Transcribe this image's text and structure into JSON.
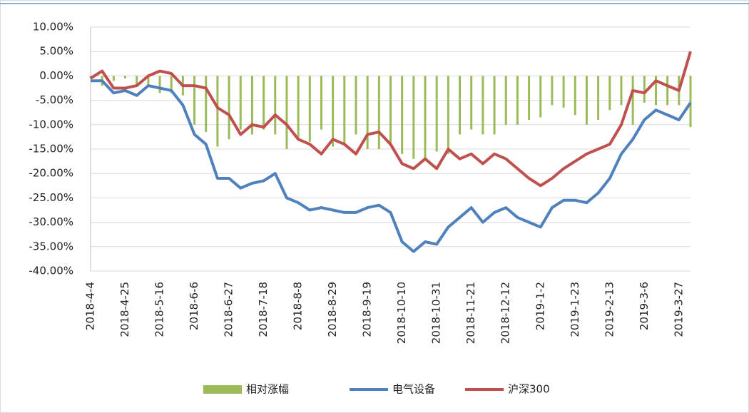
{
  "chart_data": {
    "type": "line",
    "categories": [
      "2018-4-4",
      null,
      null,
      "2018-4-25",
      null,
      null,
      "2018-5-16",
      null,
      null,
      "2018-6-6",
      null,
      null,
      "2018-6-27",
      null,
      null,
      "2018-7-18",
      null,
      null,
      "2018-8-8",
      null,
      null,
      "2018-8-29",
      null,
      null,
      "2018-9-19",
      null,
      null,
      "2018-10-10",
      null,
      null,
      "2018-10-31",
      null,
      null,
      "2018-11-21",
      null,
      null,
      "2018-12-12",
      null,
      null,
      "2019-1-2",
      null,
      null,
      "2019-1-23",
      null,
      null,
      "2019-2-13",
      null,
      null,
      "2019-3-6",
      null,
      null,
      "2019-3-27",
      null
    ],
    "series": [
      {
        "name": "相对涨幅",
        "type": "bar",
        "color": "#9bbb59",
        "values": [
          -0.5,
          -2,
          -1,
          -0.5,
          -2,
          -2,
          -3.5,
          -3.5,
          -4,
          -10,
          -11.5,
          -14.5,
          -13,
          -11,
          -12,
          -11,
          -12,
          -15,
          -13,
          -13.5,
          -11,
          -14.5,
          -14,
          -12,
          -15,
          -15,
          -14,
          -16,
          -17,
          -17,
          -15.5,
          -16,
          -12,
          -11,
          -12,
          -12,
          -10,
          -10,
          -9,
          -8.5,
          -6,
          -6.5,
          -8,
          -10,
          -9,
          -7,
          -6,
          -10,
          -5.5,
          -6,
          -6,
          -6,
          -10.5
        ]
      },
      {
        "name": "电气设备",
        "type": "line",
        "color": "#4f81bd",
        "values": [
          -1,
          -1,
          -3.5,
          -3,
          -4,
          -2,
          -2.5,
          -3,
          -6,
          -12,
          -14,
          -21,
          -21,
          -23,
          -22,
          -21.5,
          -20,
          -25,
          -26,
          -27.5,
          -27,
          -27.5,
          -28,
          -28,
          -27,
          -26.5,
          -28,
          -34,
          -36,
          -34,
          -34.5,
          -31,
          -29,
          -27,
          -30,
          -28,
          -27,
          -29,
          -30,
          -31,
          -27,
          -25.5,
          -25.5,
          -26,
          -24,
          -21,
          -16,
          -13,
          -9,
          -7,
          -8,
          -9,
          -5.5
        ]
      },
      {
        "name": "沪深300",
        "type": "line",
        "color": "#c0504d",
        "values": [
          -0.5,
          1,
          -2.5,
          -2.5,
          -2,
          0,
          1,
          0.5,
          -2,
          -2,
          -2.5,
          -6.5,
          -8,
          -12,
          -10,
          -10.5,
          -8,
          -10,
          -13,
          -14,
          -16,
          -13,
          -14,
          -16,
          -12,
          -11.5,
          -14,
          -18,
          -19,
          -17,
          -19,
          -15,
          -17,
          -16,
          -18,
          -16,
          -17,
          -19,
          -21,
          -22.5,
          -21,
          -19,
          -17.5,
          -16,
          -15,
          -14,
          -10,
          -3,
          -3.5,
          -1,
          -2,
          -3,
          5
        ]
      }
    ],
    "ylim": [
      -40,
      10
    ],
    "yticks": [
      {
        "value": -40,
        "label": "-40.00%"
      },
      {
        "value": -35,
        "label": "-35.00%"
      },
      {
        "value": -30,
        "label": "-30.00%"
      },
      {
        "value": -25,
        "label": "-25.00%"
      },
      {
        "value": -20,
        "label": "-20.00%"
      },
      {
        "value": -15,
        "label": "-15.00%"
      },
      {
        "value": -10,
        "label": "-10.00%"
      },
      {
        "value": -5,
        "label": "-5.00%"
      },
      {
        "value": 0,
        "label": "0.00%"
      },
      {
        "value": 5,
        "label": "5.00%"
      },
      {
        "value": 10,
        "label": "10.00%"
      }
    ],
    "grid": true,
    "legend": "bottom"
  }
}
